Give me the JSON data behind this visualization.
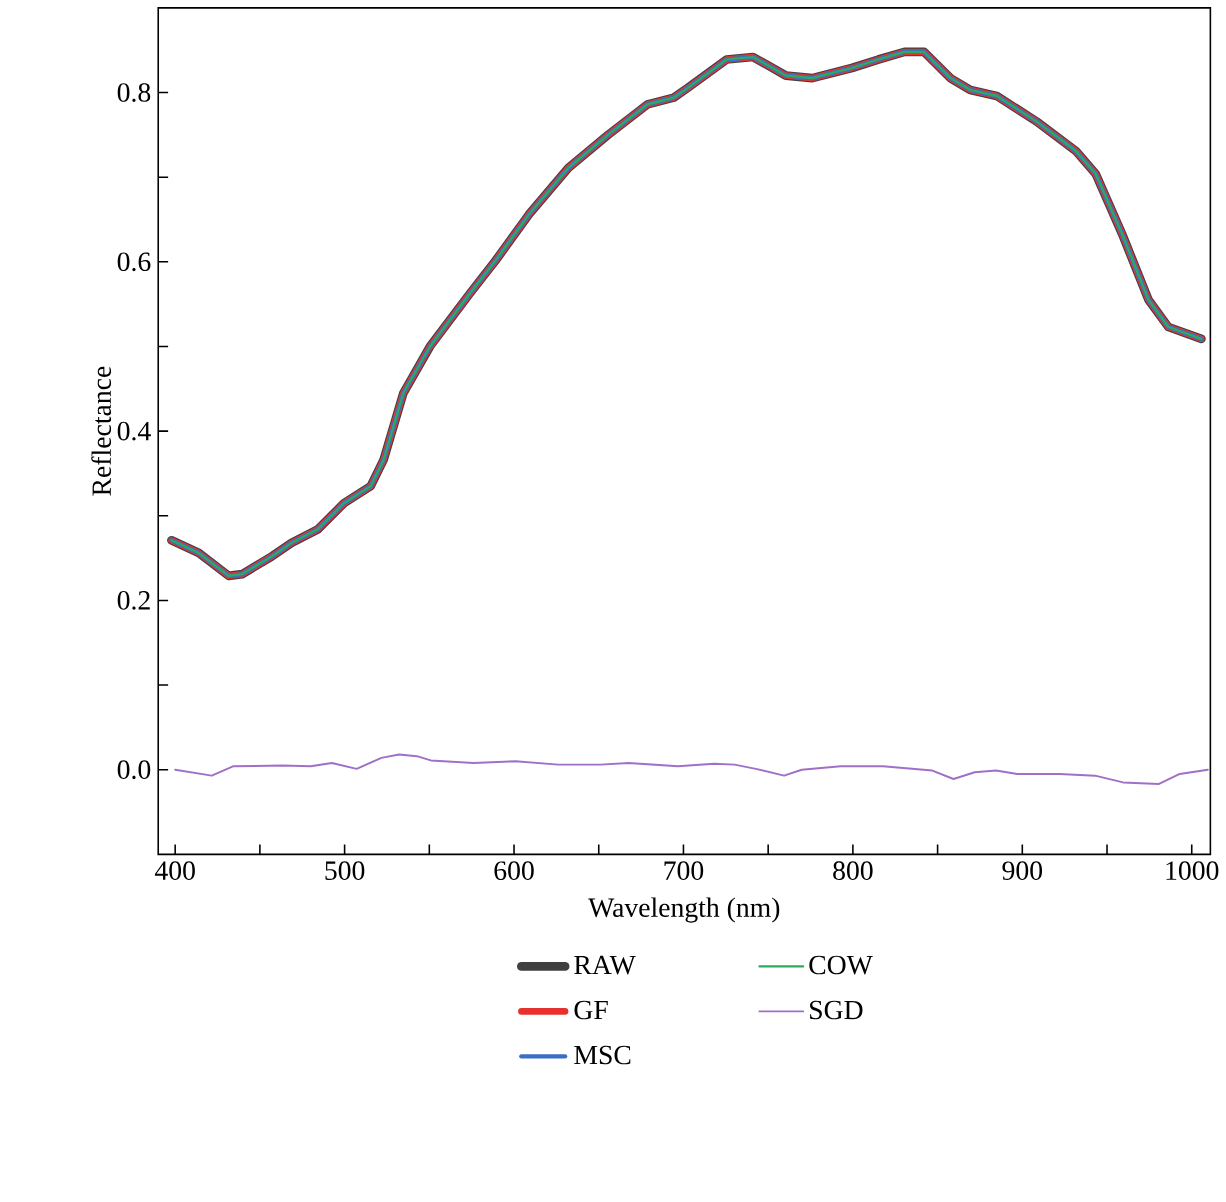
{
  "chart_data": {
    "type": "line",
    "xlabel": "Wavelength (nm)",
    "ylabel": "Reflectance",
    "x": [
      397.8,
      414,
      431.6,
      439.5,
      457,
      468.7,
      484.2,
      499.7,
      515.4,
      523,
      534.7,
      550.4,
      573.7,
      589.3,
      608.8,
      632.1,
      655.5,
      678.8,
      694.3,
      702.2,
      725.5,
      741,
      760.5,
      776,
      799.4,
      815,
      830.5,
      842,
      857.6,
      869.3,
      884.9,
      908.3,
      931.6,
      943.3,
      958.9,
      974.5,
      986.2,
      1005.7
    ],
    "series": [
      {
        "name": "RAW",
        "color": "#404040",
        "values": [
          0.271,
          0.256,
          0.229,
          0.231,
          0.252,
          0.268,
          0.284,
          0.315,
          0.335,
          0.366,
          0.445,
          0.5,
          0.562,
          0.602,
          0.656,
          0.711,
          0.75,
          0.786,
          0.794,
          0.805,
          0.839,
          0.842,
          0.82,
          0.817,
          0.829,
          0.839,
          0.848,
          0.848,
          0.817,
          0.803,
          0.796,
          0.766,
          0.731,
          0.704,
          0.633,
          0.555,
          0.523,
          0.509
        ]
      },
      {
        "name": "GF",
        "color": "#e8312f",
        "values": [
          0.271,
          0.256,
          0.229,
          0.231,
          0.252,
          0.268,
          0.284,
          0.315,
          0.335,
          0.366,
          0.445,
          0.5,
          0.562,
          0.602,
          0.656,
          0.711,
          0.75,
          0.786,
          0.794,
          0.805,
          0.839,
          0.842,
          0.82,
          0.817,
          0.829,
          0.839,
          0.848,
          0.848,
          0.817,
          0.803,
          0.796,
          0.766,
          0.731,
          0.704,
          0.633,
          0.555,
          0.523,
          0.509
        ]
      },
      {
        "name": "MSC",
        "color": "#3a6fc4",
        "values": [
          0.271,
          0.256,
          0.229,
          0.231,
          0.252,
          0.268,
          0.284,
          0.315,
          0.335,
          0.366,
          0.445,
          0.5,
          0.562,
          0.602,
          0.656,
          0.711,
          0.75,
          0.786,
          0.794,
          0.805,
          0.839,
          0.842,
          0.82,
          0.817,
          0.829,
          0.839,
          0.848,
          0.848,
          0.817,
          0.803,
          0.796,
          0.766,
          0.731,
          0.704,
          0.633,
          0.555,
          0.523,
          0.509
        ]
      },
      {
        "name": "COW",
        "color": "#2eaa5e",
        "values": [
          0.271,
          0.256,
          0.229,
          0.231,
          0.252,
          0.268,
          0.284,
          0.315,
          0.335,
          0.366,
          0.445,
          0.5,
          0.562,
          0.602,
          0.656,
          0.711,
          0.75,
          0.786,
          0.794,
          0.805,
          0.839,
          0.842,
          0.82,
          0.817,
          0.829,
          0.839,
          0.848,
          0.848,
          0.817,
          0.803,
          0.796,
          0.766,
          0.731,
          0.704,
          0.633,
          0.555,
          0.523,
          0.509
        ]
      },
      {
        "name": "SGD",
        "color": "#a070c8",
        "x": [
          400,
          421.6,
          434.1,
          463.3,
          480,
          492.5,
          507.1,
          521.7,
          532.2,
          542.6,
          550.9,
          576,
          601,
          626,
          651,
          667.6,
          696.8,
          718,
          730.2,
          742.7,
          759.4,
          769.8,
          792.8,
          817.7,
          846.9,
          859.4,
          871.9,
          884.5,
          897,
          922,
          942.9,
          959.5,
          980.4,
          992.9,
          1009.5
        ],
        "values": [
          0.0,
          -0.007,
          0.004,
          0.005,
          0.004,
          0.008,
          0.001,
          0.014,
          0.018,
          0.016,
          0.011,
          0.008,
          0.01,
          0.006,
          0.006,
          0.008,
          0.004,
          0.007,
          0.006,
          0.001,
          -0.007,
          0.0,
          0.004,
          0.004,
          -0.001,
          -0.011,
          -0.003,
          -0.001,
          -0.005,
          -0.005,
          -0.007,
          -0.015,
          -0.017,
          -0.005,
          0.0
        ]
      }
    ],
    "xlim": [
      390,
      1011
    ],
    "ylim": [
      -0.1,
      0.9
    ],
    "xticks": [
      400,
      {
        "value": 450,
        "label": null
      },
      500,
      {
        "value": 550,
        "label": null
      },
      600,
      {
        "value": 650,
        "label": null
      },
      700,
      {
        "value": 750,
        "label": null
      },
      800,
      {
        "value": 850,
        "label": null
      },
      900,
      {
        "value": 950,
        "label": null
      },
      1000
    ],
    "yticks": [
      {
        "value": 0,
        "label": "0.0"
      },
      {
        "value": 0.1,
        "label": null
      },
      {
        "value": 0.2,
        "label": "0.2"
      },
      {
        "value": 0.3,
        "label": null
      },
      {
        "value": 0.4,
        "label": "0.4"
      },
      {
        "value": 0.5,
        "label": null
      },
      {
        "value": 0.6,
        "label": "0.6"
      },
      {
        "value": 0.7,
        "label": null
      },
      {
        "value": 0.8,
        "label": "0.8"
      }
    ],
    "grid": false,
    "legend": "bottom",
    "marker": "none",
    "line_style": "solid"
  }
}
